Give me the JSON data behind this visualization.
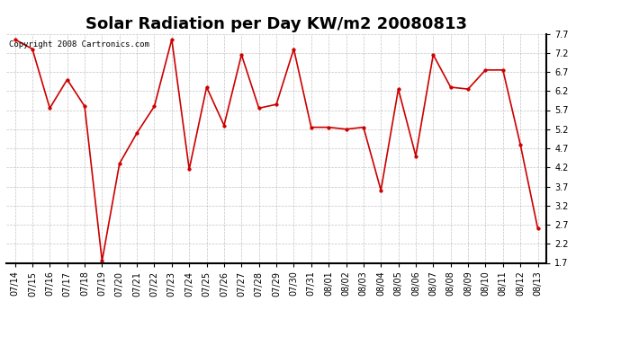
{
  "title": "Solar Radiation per Day KW/m2 20080813",
  "copyright_text": "Copyright 2008 Cartronics.com",
  "dates": [
    "07/14",
    "07/15",
    "07/16",
    "07/17",
    "07/18",
    "07/19",
    "07/20",
    "07/21",
    "07/22",
    "07/23",
    "07/24",
    "07/25",
    "07/26",
    "07/27",
    "07/28",
    "07/29",
    "07/30",
    "07/31",
    "08/01",
    "08/02",
    "08/03",
    "08/04",
    "08/05",
    "08/06",
    "08/07",
    "08/08",
    "08/09",
    "08/10",
    "08/11",
    "08/12",
    "08/13"
  ],
  "values": [
    7.55,
    7.3,
    5.75,
    6.5,
    5.8,
    1.75,
    4.3,
    5.1,
    5.8,
    7.55,
    4.15,
    6.3,
    5.3,
    7.15,
    5.75,
    5.85,
    7.3,
    5.25,
    5.25,
    5.2,
    5.25,
    3.6,
    6.25,
    4.5,
    7.15,
    6.3,
    6.25,
    6.75,
    6.75,
    4.8,
    2.6
  ],
  "line_color": "#cc0000",
  "marker": "o",
  "marker_size": 2.5,
  "ylim": [
    1.7,
    7.7
  ],
  "yticks": [
    1.7,
    2.2,
    2.7,
    3.2,
    3.7,
    4.2,
    4.7,
    5.2,
    5.7,
    6.2,
    6.7,
    7.2,
    7.7
  ],
  "bg_color": "#ffffff",
  "grid_color": "#aaaaaa",
  "title_fontsize": 13,
  "tick_fontsize": 7,
  "copyright_fontsize": 6.5
}
